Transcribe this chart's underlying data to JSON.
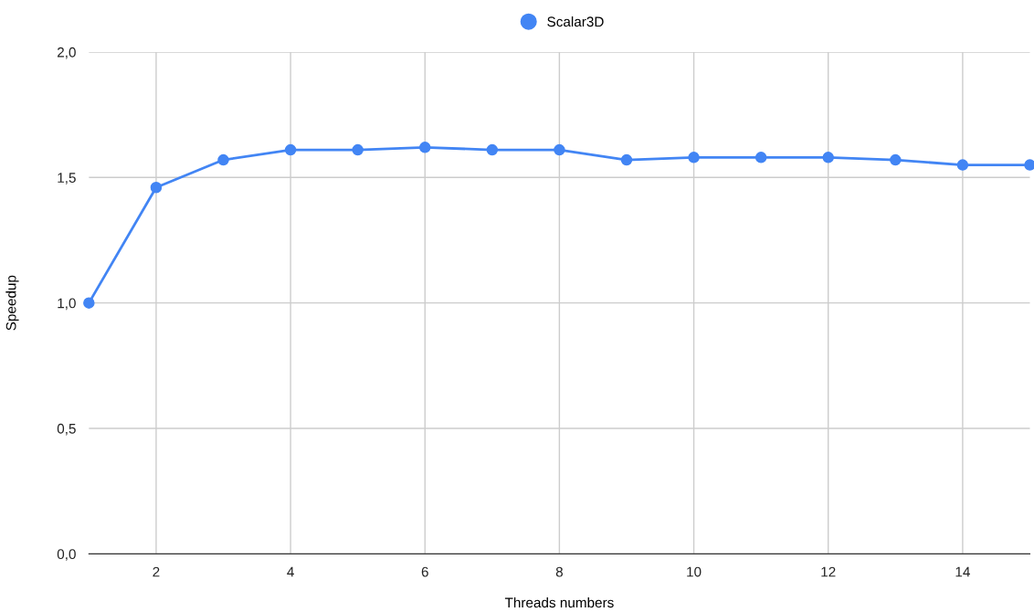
{
  "chart_data": {
    "type": "line",
    "xlabel": "Threads numbers",
    "ylabel": "Speedup",
    "x": [
      1,
      2,
      3,
      4,
      5,
      6,
      7,
      8,
      9,
      10,
      11,
      12,
      13,
      14,
      15
    ],
    "series": [
      {
        "name": "Scalar3D",
        "color": "#4285f4",
        "values": [
          1.0,
          1.46,
          1.57,
          1.61,
          1.61,
          1.62,
          1.61,
          1.61,
          1.57,
          1.58,
          1.58,
          1.58,
          1.57,
          1.55,
          1.55
        ]
      }
    ],
    "xlim": [
      1,
      15
    ],
    "xticks": [
      2,
      4,
      6,
      8,
      10,
      12,
      14
    ],
    "ylim": [
      0,
      2
    ],
    "yticks": [
      {
        "value": 0,
        "label": "0,0"
      },
      {
        "value": 0.5,
        "label": "0,5"
      },
      {
        "value": 1,
        "label": "1,0"
      },
      {
        "value": 1.5,
        "label": "1,5"
      },
      {
        "value": 2,
        "label": "2,0"
      }
    ],
    "grid": true,
    "legend": "top",
    "marker": "circle",
    "line_style": "solid"
  }
}
